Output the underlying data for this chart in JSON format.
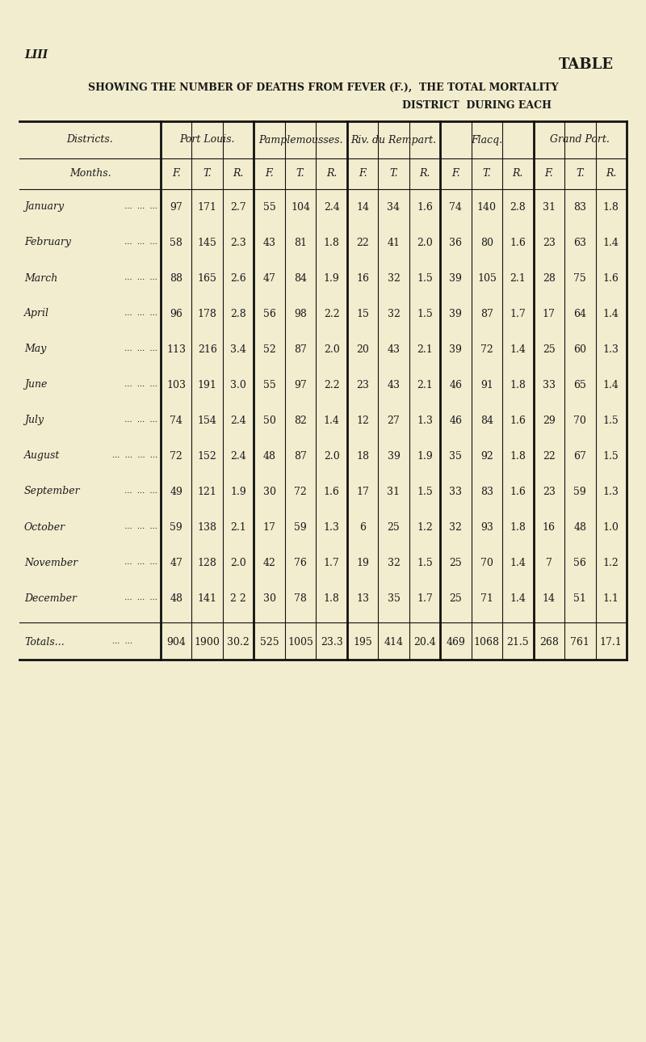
{
  "page_label": "LIII",
  "title1": "TABLE",
  "title2": "SHOWING THE NUMBER OF DEATHS FROM FEVER (F.),  THE TOTAL MORTALITY",
  "title3": "DISTRICT  DURING EACH",
  "bg_color": "#f2edcf",
  "text_color": "#1a1a1a",
  "districts": [
    "Districts.",
    "Port Louis.",
    "Pamplemousses.",
    "Riv. du Rempart.",
    "Flacq.",
    "Grand Port."
  ],
  "months": [
    "January",
    "February",
    "March",
    "April",
    "May",
    "June",
    "July",
    "August",
    "September",
    "October",
    "November",
    "December"
  ],
  "month_dots": [
    "  ...  ...  ...",
    "  ...  ...  ...",
    "  ...  ...  ...",
    "  ...  ...  ...",
    "  ...  ...  ...",
    "  ...  ...  ...",
    "  ...  ...  ...",
    "...  ...  ...  ...",
    "  ...  ...  ...",
    "  ...  ...  ...",
    "  ...  ...  ...",
    "  ...  ...  ..."
  ],
  "data": [
    [
      97,
      171,
      "2.7",
      55,
      104,
      "2.4",
      14,
      34,
      "1.6",
      74,
      140,
      "2.8",
      31,
      83,
      "1.8"
    ],
    [
      58,
      145,
      "2.3",
      43,
      81,
      "1.8",
      22,
      41,
      "2.0",
      36,
      80,
      "1.6",
      23,
      63,
      "1.4"
    ],
    [
      88,
      165,
      "2.6",
      47,
      84,
      "1.9",
      16,
      32,
      "1.5",
      39,
      105,
      "2.1",
      28,
      75,
      "1.6"
    ],
    [
      96,
      178,
      "2.8",
      56,
      98,
      "2.2",
      15,
      32,
      "1.5",
      39,
      87,
      "1.7",
      17,
      64,
      "1.4"
    ],
    [
      113,
      216,
      "3.4",
      52,
      87,
      "2.0",
      20,
      43,
      "2.1",
      39,
      72,
      "1.4",
      25,
      60,
      "1.3"
    ],
    [
      103,
      191,
      "3.0",
      55,
      97,
      "2.2",
      23,
      43,
      "2.1",
      46,
      91,
      "1.8",
      33,
      65,
      "1.4"
    ],
    [
      74,
      154,
      "2.4",
      50,
      82,
      "1.4",
      12,
      27,
      "1.3",
      46,
      84,
      "1.6",
      29,
      70,
      "1.5"
    ],
    [
      72,
      152,
      "2.4",
      48,
      87,
      "2.0",
      18,
      39,
      "1.9",
      35,
      92,
      "1.8",
      22,
      67,
      "1.5"
    ],
    [
      49,
      121,
      "1.9",
      30,
      72,
      "1.6",
      17,
      31,
      "1.5",
      33,
      83,
      "1.6",
      23,
      59,
      "1.3"
    ],
    [
      59,
      138,
      "2.1",
      17,
      59,
      "1.3",
      6,
      25,
      "1.2",
      32,
      93,
      "1.8",
      16,
      48,
      "1.0"
    ],
    [
      47,
      128,
      "2.0",
      42,
      76,
      "1.7",
      19,
      32,
      "1.5",
      25,
      70,
      "1.4",
      7,
      56,
      "1.2"
    ],
    [
      48,
      141,
      "2 2",
      30,
      78,
      "1.8",
      13,
      35,
      "1.7",
      25,
      71,
      "1.4",
      14,
      51,
      "1.1"
    ]
  ],
  "totals": [
    904,
    1900,
    "30.2",
    525,
    1005,
    "23.3",
    195,
    414,
    "20.4",
    469,
    1068,
    "21.5",
    268,
    761,
    "17.1"
  ]
}
